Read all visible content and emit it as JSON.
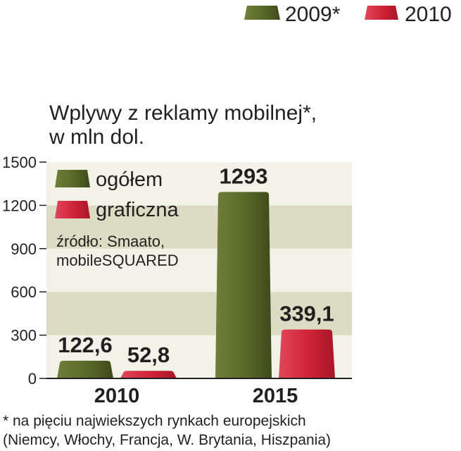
{
  "top_legend": [
    {
      "label": "2009*",
      "color": "#5a6a2c"
    },
    {
      "label": "2010",
      "color": "#d6293c"
    }
  ],
  "chart_data": {
    "type": "bar",
    "title_lines": [
      "Wplywy z reklamy mobilnej*,",
      "w mln dol."
    ],
    "categories": [
      "2010",
      "2015"
    ],
    "series": [
      {
        "name": "ogółem",
        "values": [
          122.6,
          1293
        ],
        "labels": [
          "122,6",
          "1293"
        ],
        "color": "#5a6a2c"
      },
      {
        "name": "graficzna",
        "values": [
          52.8,
          339.1
        ],
        "labels": [
          "52,8",
          "339,1"
        ],
        "color": "#d6293c"
      }
    ],
    "yticks": [
      "0",
      "300",
      "600",
      "900",
      "1200",
      "1500"
    ],
    "ylim": [
      0,
      1500
    ],
    "grid": "alternating bands"
  },
  "source_lines": [
    "źródło: Smaato,",
    "mobileSQUARED"
  ],
  "footnote_lines": [
    "* na pięciu najwiekszych rynkach europejskich",
    "(Niemcy, Włochy, Francja, W. Brytania, Hiszpania)"
  ]
}
